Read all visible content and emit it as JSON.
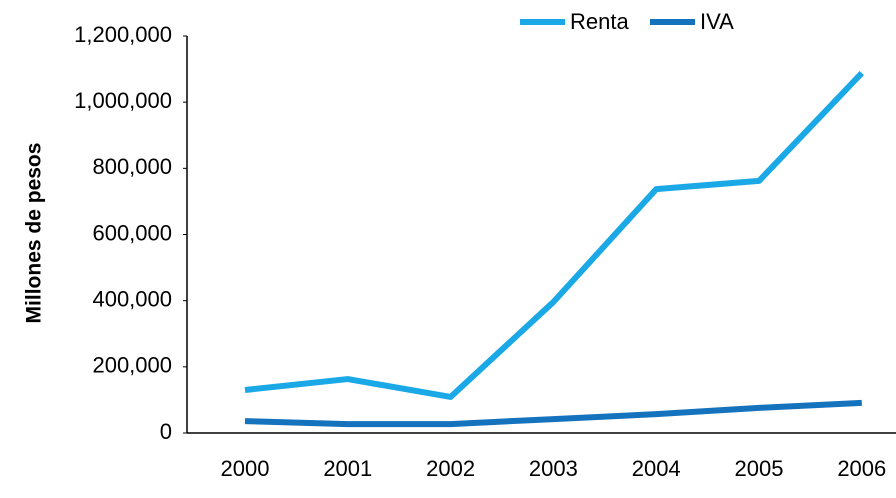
{
  "chart_data": {
    "type": "line",
    "y_label": "Millones de pesos",
    "categories": [
      "2000",
      "2001",
      "2002",
      "2003",
      "2004",
      "2005",
      "2006"
    ],
    "series": [
      {
        "name": "Renta",
        "color": "#1aa9e6",
        "values": [
          130000,
          163000,
          109000,
          396000,
          737000,
          762000,
          1088000
        ]
      },
      {
        "name": "IVA",
        "color": "#1572bd",
        "values": [
          36000,
          27000,
          27000,
          42000,
          57000,
          76000,
          91000
        ]
      }
    ],
    "ylim": [
      0,
      1200000
    ],
    "yticks": [
      0,
      {
        "value": 200000,
        "label": "200,000"
      },
      {
        "value": 400000,
        "label": "400,000"
      },
      {
        "value": 600000,
        "label": "600,000"
      },
      {
        "value": 800000,
        "label": "800,000"
      },
      {
        "value": 1000000,
        "label": "1,000,000"
      },
      {
        "value": 1200000,
        "label": "1,200,000"
      }
    ],
    "grid": false,
    "legend": "top"
  }
}
